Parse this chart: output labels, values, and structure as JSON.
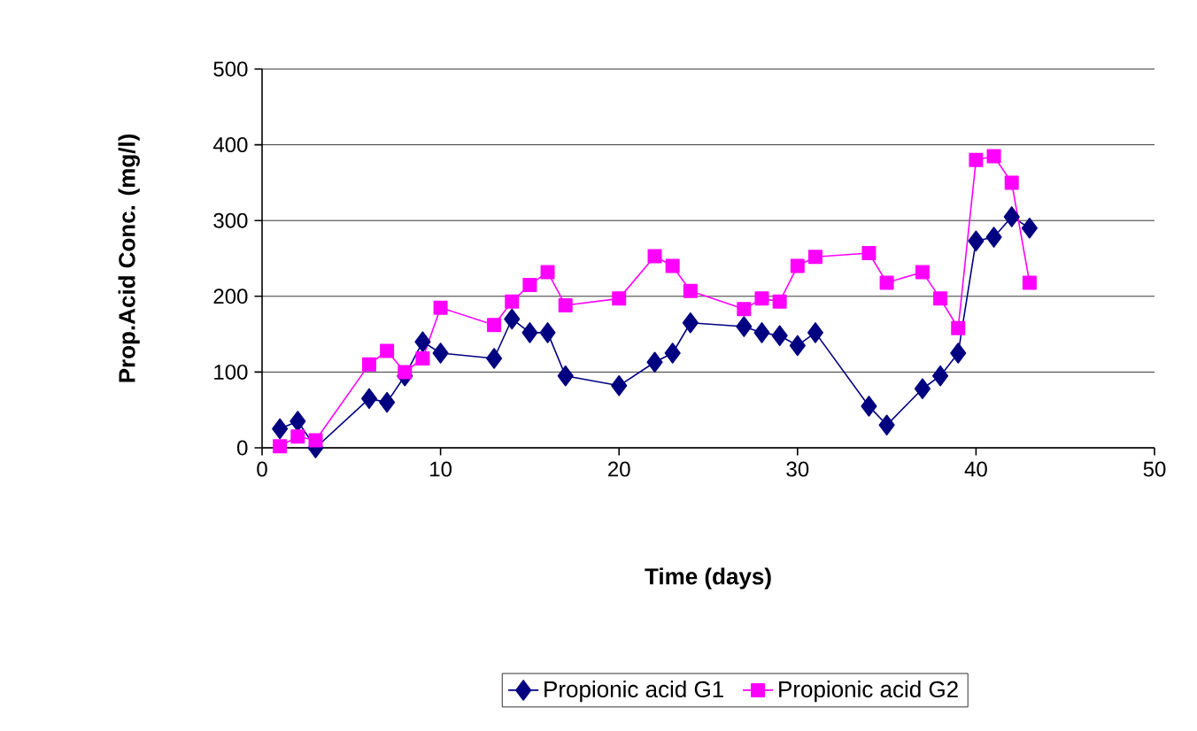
{
  "chart_data": {
    "type": "line",
    "xlabel": "Time (days)",
    "ylabel": "Prop.Acid Conc. (mg/l)",
    "xlim": [
      0,
      50
    ],
    "xticks": [
      0,
      10,
      20,
      30,
      40,
      50
    ],
    "ylim": [
      0,
      500
    ],
    "yticks": [
      0,
      100,
      200,
      300,
      400,
      500
    ],
    "grid": "y",
    "legend": "bottom",
    "series": [
      {
        "name": "Propionic acid G1",
        "color": "#000080",
        "marker": "diamond",
        "x": [
          1,
          2,
          3,
          6,
          7,
          8,
          9,
          10,
          13,
          14,
          15,
          16,
          17,
          20,
          22,
          23,
          24,
          27,
          28,
          29,
          30,
          31,
          34,
          35,
          37,
          38,
          39,
          40,
          41,
          42,
          43
        ],
        "values": [
          25,
          35,
          0,
          65,
          60,
          95,
          140,
          125,
          118,
          170,
          152,
          152,
          95,
          82,
          113,
          125,
          165,
          160,
          152,
          148,
          135,
          152,
          55,
          30,
          78,
          95,
          125,
          273,
          278,
          305,
          290
        ]
      },
      {
        "name": "Propionic acid G2",
        "color": "#ff00ff",
        "marker": "square",
        "x": [
          1,
          2,
          3,
          6,
          7,
          8,
          9,
          10,
          13,
          14,
          15,
          16,
          17,
          20,
          22,
          23,
          24,
          27,
          28,
          29,
          30,
          31,
          34,
          35,
          37,
          38,
          39,
          40,
          41,
          42,
          43
        ],
        "values": [
          2,
          15,
          10,
          110,
          128,
          100,
          118,
          185,
          162,
          193,
          215,
          232,
          188,
          197,
          253,
          240,
          207,
          183,
          197,
          193,
          240,
          252,
          257,
          218,
          232,
          197,
          158,
          380,
          385,
          350,
          218
        ]
      }
    ]
  }
}
